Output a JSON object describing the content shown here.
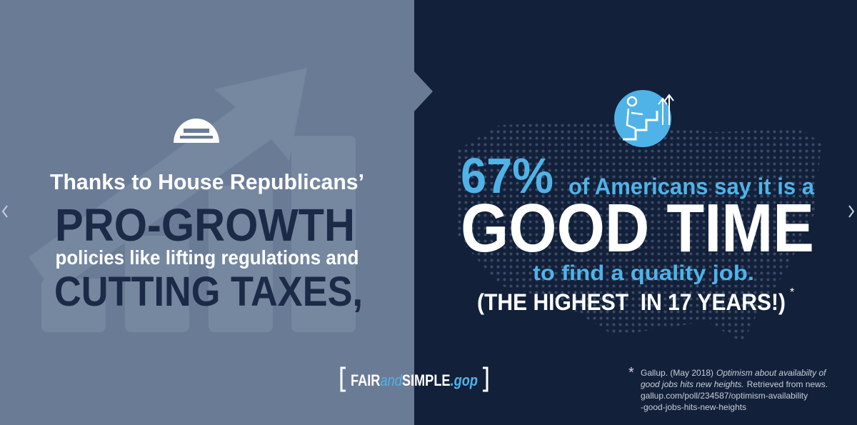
{
  "left_panel": {
    "intro": "Thanks to House Republicans’",
    "headline1": "PRO-GROWTH",
    "middle": "policies like lifting regulations and",
    "headline2": "CUTTING TAXES,"
  },
  "right_panel": {
    "stat": "67%",
    "stat_text": "of Americans say it is a",
    "headline": "GOOD TIME",
    "subtext": "to find a quality job.",
    "note": "(THE HIGHEST  IN 17 YEARS!)",
    "note_marker": "*"
  },
  "logo": {
    "part1": "FAIR",
    "part2": "and",
    "part3": "SIMPLE",
    "part4": ".gop"
  },
  "footnote": {
    "marker": "*",
    "lines": [
      [
        "Gallup. (May 2018)",
        "Optimism about availabilty of"
      ],
      [
        "good jobs hits new heights.",
        "Retrieved from news."
      ],
      [
        "gallup.com/poll/234587/optimism-availability"
      ],
      [
        "-good-jobs-hits-new-heights"
      ]
    ]
  }
}
